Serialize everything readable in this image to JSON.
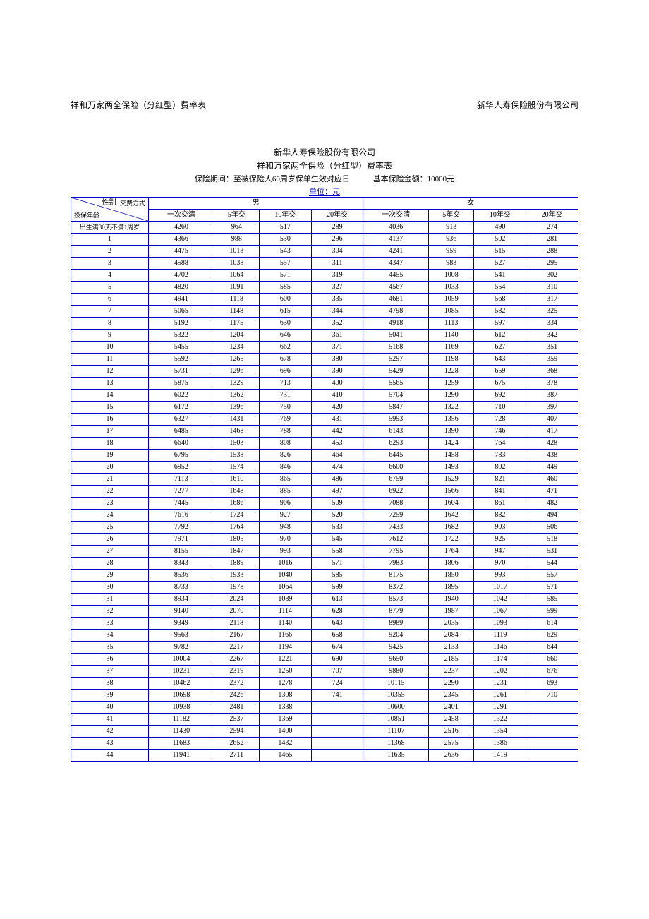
{
  "header": {
    "left": "祥和万家两全保险（分红型）费率表",
    "right": "新华人寿保险股份有限公司"
  },
  "titles": {
    "line1": "新华人寿保险股份有限公司",
    "line2": "祥和万家两全保险（分红型）费率表"
  },
  "sub_info": {
    "left": "保险期间：至被保险人60周岁保单生效对应日",
    "right": "基本保险金额：10000元"
  },
  "unit": "单位：元",
  "table": {
    "gender_header": "性别",
    "male": "男",
    "female": "女",
    "diag_top": "交费方式",
    "diag_bottom": "投保年龄",
    "pay_cols": [
      "一次交清",
      "5年交",
      "10年交",
      "20年交",
      "一次交清",
      "5年交",
      "10年交",
      "20年交"
    ],
    "first_row_label": "出生满30天不满1周岁",
    "rows": [
      {
        "age": "出生满30天不满1周岁",
        "v": [
          4260,
          964,
          517,
          289,
          4036,
          913,
          490,
          274
        ]
      },
      {
        "age": "1",
        "v": [
          4366,
          988,
          530,
          296,
          4137,
          936,
          502,
          281
        ]
      },
      {
        "age": "2",
        "v": [
          4475,
          1013,
          543,
          304,
          4241,
          959,
          515,
          288
        ]
      },
      {
        "age": "3",
        "v": [
          4588,
          1038,
          557,
          311,
          4347,
          983,
          527,
          295
        ]
      },
      {
        "age": "4",
        "v": [
          4702,
          1064,
          571,
          319,
          4455,
          1008,
          541,
          302
        ]
      },
      {
        "age": "5",
        "v": [
          4820,
          1091,
          585,
          327,
          4567,
          1033,
          554,
          310
        ]
      },
      {
        "age": "6",
        "v": [
          4941,
          1118,
          600,
          335,
          4681,
          1059,
          568,
          317
        ]
      },
      {
        "age": "7",
        "v": [
          5065,
          1148,
          615,
          344,
          4798,
          1085,
          582,
          325
        ]
      },
      {
        "age": "8",
        "v": [
          5192,
          1175,
          630,
          352,
          4918,
          1113,
          597,
          334
        ]
      },
      {
        "age": "9",
        "v": [
          5322,
          1204,
          646,
          361,
          5041,
          1140,
          612,
          342
        ]
      },
      {
        "age": "10",
        "v": [
          5455,
          1234,
          662,
          371,
          5168,
          1169,
          627,
          351
        ]
      },
      {
        "age": "11",
        "v": [
          5592,
          1265,
          678,
          380,
          5297,
          1198,
          643,
          359
        ]
      },
      {
        "age": "12",
        "v": [
          5731,
          1296,
          696,
          390,
          5429,
          1228,
          659,
          368
        ]
      },
      {
        "age": "13",
        "v": [
          5875,
          1329,
          713,
          400,
          5565,
          1259,
          675,
          378
        ]
      },
      {
        "age": "14",
        "v": [
          6022,
          1362,
          731,
          410,
          5704,
          1290,
          692,
          387
        ]
      },
      {
        "age": "15",
        "v": [
          6172,
          1396,
          750,
          420,
          5847,
          1322,
          710,
          397
        ]
      },
      {
        "age": "16",
        "v": [
          6327,
          1431,
          769,
          431,
          5993,
          1356,
          728,
          407
        ]
      },
      {
        "age": "17",
        "v": [
          6485,
          1468,
          788,
          442,
          6143,
          1390,
          746,
          417
        ]
      },
      {
        "age": "18",
        "v": [
          6640,
          1503,
          808,
          453,
          6293,
          1424,
          764,
          428
        ]
      },
      {
        "age": "19",
        "v": [
          6795,
          1538,
          826,
          464,
          6445,
          1458,
          783,
          438
        ]
      },
      {
        "age": "20",
        "v": [
          6952,
          1574,
          846,
          474,
          6600,
          1493,
          802,
          449
        ]
      },
      {
        "age": "21",
        "v": [
          7113,
          1610,
          865,
          486,
          6759,
          1529,
          821,
          460
        ]
      },
      {
        "age": "22",
        "v": [
          7277,
          1648,
          885,
          497,
          6922,
          1566,
          841,
          471
        ]
      },
      {
        "age": "23",
        "v": [
          7445,
          1686,
          906,
          509,
          7088,
          1604,
          861,
          482
        ]
      },
      {
        "age": "24",
        "v": [
          7616,
          1724,
          927,
          520,
          7259,
          1642,
          882,
          494
        ]
      },
      {
        "age": "25",
        "v": [
          7792,
          1764,
          948,
          533,
          7433,
          1682,
          903,
          506
        ]
      },
      {
        "age": "26",
        "v": [
          7971,
          1805,
          970,
          545,
          7612,
          1722,
          925,
          518
        ]
      },
      {
        "age": "27",
        "v": [
          8155,
          1847,
          993,
          558,
          7795,
          1764,
          947,
          531
        ]
      },
      {
        "age": "28",
        "v": [
          8343,
          1889,
          1016,
          571,
          7983,
          1806,
          970,
          544
        ]
      },
      {
        "age": "29",
        "v": [
          8536,
          1933,
          1040,
          585,
          8175,
          1850,
          993,
          557
        ]
      },
      {
        "age": "30",
        "v": [
          8733,
          1978,
          1064,
          599,
          8372,
          1895,
          1017,
          571
        ]
      },
      {
        "age": "31",
        "v": [
          8934,
          2024,
          1089,
          613,
          8573,
          1940,
          1042,
          585
        ]
      },
      {
        "age": "32",
        "v": [
          9140,
          2070,
          1114,
          628,
          8779,
          1987,
          1067,
          599
        ]
      },
      {
        "age": "33",
        "v": [
          9349,
          2118,
          1140,
          643,
          8989,
          2035,
          1093,
          614
        ]
      },
      {
        "age": "34",
        "v": [
          9563,
          2167,
          1166,
          658,
          9204,
          2084,
          1119,
          629
        ]
      },
      {
        "age": "35",
        "v": [
          9782,
          2217,
          1194,
          674,
          9425,
          2133,
          1146,
          644
        ]
      },
      {
        "age": "36",
        "v": [
          10004,
          2267,
          1221,
          690,
          9650,
          2185,
          1174,
          660
        ]
      },
      {
        "age": "37",
        "v": [
          10231,
          2319,
          1250,
          707,
          9880,
          2237,
          1202,
          676
        ]
      },
      {
        "age": "38",
        "v": [
          10462,
          2372,
          1278,
          724,
          10115,
          2290,
          1231,
          693
        ]
      },
      {
        "age": "39",
        "v": [
          10698,
          2426,
          1308,
          741,
          10355,
          2345,
          1261,
          710
        ]
      },
      {
        "age": "40",
        "v": [
          10938,
          2481,
          1338,
          "",
          10600,
          2401,
          1291,
          ""
        ]
      },
      {
        "age": "41",
        "v": [
          11182,
          2537,
          1369,
          "",
          10851,
          2458,
          1322,
          ""
        ]
      },
      {
        "age": "42",
        "v": [
          11430,
          2594,
          1400,
          "",
          11107,
          2516,
          1354,
          ""
        ]
      },
      {
        "age": "43",
        "v": [
          11683,
          2652,
          1432,
          "",
          11368,
          2575,
          1386,
          ""
        ]
      },
      {
        "age": "44",
        "v": [
          11941,
          2711,
          1465,
          "",
          11635,
          2636,
          1419,
          ""
        ]
      }
    ],
    "colors": {
      "border": "#0000cc",
      "text": "#000000",
      "bg": "#ffffff"
    }
  }
}
